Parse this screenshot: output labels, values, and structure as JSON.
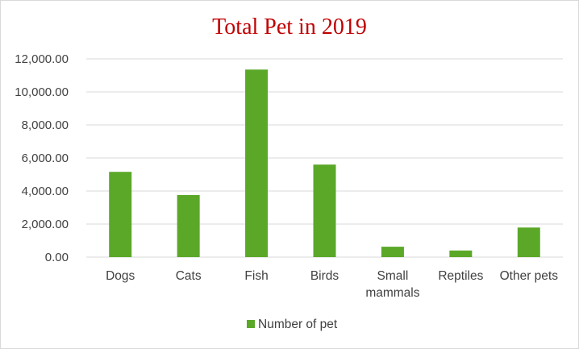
{
  "chart_data": {
    "type": "bar",
    "title": "Total Pet in 2019",
    "categories": [
      "Dogs",
      "Cats",
      "Fish",
      "Birds",
      "Small\nmammals",
      "Reptiles",
      "Other pets"
    ],
    "series": [
      {
        "name": "Number of pet",
        "color": "#5ba829",
        "values": [
          5160,
          3760,
          11350,
          5600,
          630,
          400,
          1790
        ]
      }
    ],
    "ylim": [
      0,
      12000
    ],
    "yticks": [
      "0.00",
      "2,000.00",
      "4,000.00",
      "6,000.00",
      "8,000.00",
      "10,000.00",
      "12,000.00"
    ],
    "grid": true,
    "legend_position": "bottom",
    "colors": {
      "title": "#c00000",
      "gridline": "#d9d9d9",
      "axis_text": "#404040"
    }
  }
}
